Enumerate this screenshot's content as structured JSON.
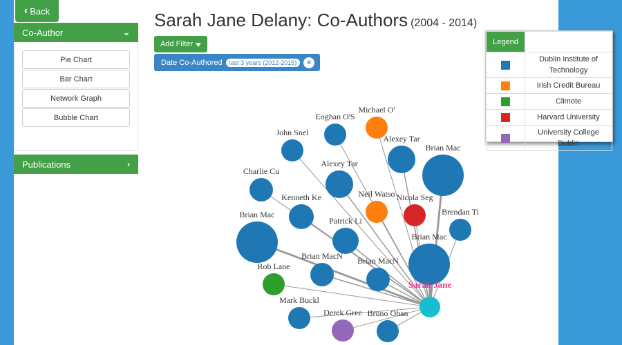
{
  "nav": {
    "back_label": "Back"
  },
  "sidebar": {
    "coauthor_header": "Co-Author",
    "items": [
      {
        "label": "Pie Chart"
      },
      {
        "label": "Bar Chart"
      },
      {
        "label": "Network Graph"
      },
      {
        "label": "Bubble Chart"
      }
    ],
    "publications_header": "Publications"
  },
  "header": {
    "title": "Sarah Jane Delany: Co-Authors",
    "years": "(2004 - 2014)"
  },
  "filters": {
    "add_label": "Add Filter",
    "active": {
      "label": "Date Co-Authored",
      "value": "last 3 years (2012-2015)"
    }
  },
  "legend": {
    "title": "Legend",
    "entries": [
      {
        "name": "Dublin Institute of Technology",
        "color": "#1f77b4"
      },
      {
        "name": "Irish Credit Bureau",
        "color": "#ff7f0e"
      },
      {
        "name": "Climote",
        "color": "#2ca02c"
      },
      {
        "name": "Harvard University",
        "color": "#d62728"
      },
      {
        "name": "University College Dublin",
        "color": "#9467bd"
      }
    ]
  },
  "network": {
    "center": {
      "label": "Sarah Jane",
      "color": "#17becf",
      "label_color": "#e8338f"
    },
    "nodes": [
      {
        "label": "Michael O'",
        "org": 1,
        "weight": 1
      },
      {
        "label": "Eoghan O'S",
        "org": 0,
        "weight": 1
      },
      {
        "label": "John Snel",
        "org": 0,
        "weight": 1
      },
      {
        "label": "Alexey Tar",
        "org": 0,
        "weight": 2
      },
      {
        "label": "Brian Mac",
        "org": 0,
        "weight": 5
      },
      {
        "label": "Charlie Cu",
        "org": 0,
        "weight": 1
      },
      {
        "label": "Alexey Tar",
        "org": 0,
        "weight": 2
      },
      {
        "label": "Neil Watso",
        "org": 1,
        "weight": 1
      },
      {
        "label": "Nicola Seg",
        "org": 3,
        "weight": 1
      },
      {
        "label": "Kenneth Ke",
        "org": 0,
        "weight": 2
      },
      {
        "label": "Brendan Ti",
        "org": 0,
        "weight": 1
      },
      {
        "label": "Brian Mac",
        "org": 0,
        "weight": 5
      },
      {
        "label": "Patrick Li",
        "org": 0,
        "weight": 2
      },
      {
        "label": "Brian Mac",
        "org": 0,
        "weight": 5
      },
      {
        "label": "Brian MacN",
        "org": 0,
        "weight": 2
      },
      {
        "label": "Brian MacN",
        "org": 0,
        "weight": 2
      },
      {
        "label": "Rob Lane",
        "org": 2,
        "weight": 1
      },
      {
        "label": "Mark Buckl",
        "org": 0,
        "weight": 1
      },
      {
        "label": "Derek Gree",
        "org": 4,
        "weight": 1
      },
      {
        "label": "Bruno Ohan",
        "org": 0,
        "weight": 1
      }
    ]
  }
}
